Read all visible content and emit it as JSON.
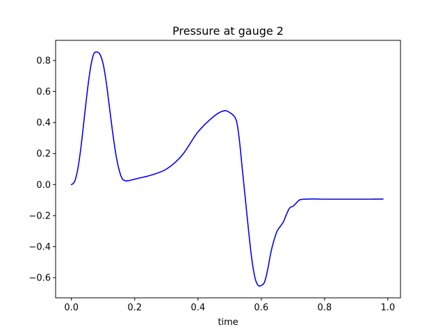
{
  "chart_data": {
    "type": "line",
    "title": "Pressure at gauge 2",
    "xlabel": "time",
    "ylabel": "",
    "xlim": [
      -0.05,
      1.04
    ],
    "ylim": [
      -0.73,
      0.93
    ],
    "grid": false,
    "xticks": [
      0.0,
      0.2,
      0.4,
      0.6,
      0.8,
      1.0
    ],
    "xtick_labels": [
      "0.0",
      "0.2",
      "0.4",
      "0.6",
      "0.8",
      "1.0"
    ],
    "yticks": [
      -0.6,
      -0.4,
      -0.2,
      0.0,
      0.2,
      0.4,
      0.6,
      0.8
    ],
    "ytick_labels": [
      "−0.6",
      "−0.4",
      "−0.2",
      "0.0",
      "0.2",
      "0.4",
      "0.6",
      "0.8"
    ],
    "series": [
      {
        "color": "#0000ff",
        "x": [
          0.0,
          0.01,
          0.02,
          0.03,
          0.04,
          0.05,
          0.06,
          0.07,
          0.08,
          0.09,
          0.1,
          0.11,
          0.12,
          0.13,
          0.14,
          0.15,
          0.16,
          0.17,
          0.18,
          0.19,
          0.2,
          0.21,
          0.22,
          0.25,
          0.3,
          0.35,
          0.4,
          0.45,
          0.48,
          0.5,
          0.52,
          0.53,
          0.54,
          0.55,
          0.56,
          0.57,
          0.58,
          0.59,
          0.6,
          0.61,
          0.62,
          0.63,
          0.64,
          0.65,
          0.66,
          0.67,
          0.68,
          0.69,
          0.7,
          0.71,
          0.72,
          0.73,
          0.75,
          0.78,
          0.8,
          0.85,
          0.9,
          0.95,
          0.985
        ],
        "y": [
          0.0,
          0.02,
          0.1,
          0.24,
          0.42,
          0.6,
          0.75,
          0.84,
          0.855,
          0.84,
          0.78,
          0.66,
          0.5,
          0.34,
          0.2,
          0.1,
          0.04,
          0.025,
          0.025,
          0.03,
          0.035,
          0.04,
          0.045,
          0.06,
          0.1,
          0.19,
          0.34,
          0.44,
          0.475,
          0.465,
          0.42,
          0.3,
          0.1,
          -0.1,
          -0.3,
          -0.48,
          -0.6,
          -0.65,
          -0.65,
          -0.63,
          -0.55,
          -0.44,
          -0.36,
          -0.3,
          -0.27,
          -0.24,
          -0.19,
          -0.15,
          -0.14,
          -0.12,
          -0.1,
          -0.095,
          -0.093,
          -0.093,
          -0.094,
          -0.094,
          -0.094,
          -0.094,
          -0.093
        ]
      }
    ]
  }
}
